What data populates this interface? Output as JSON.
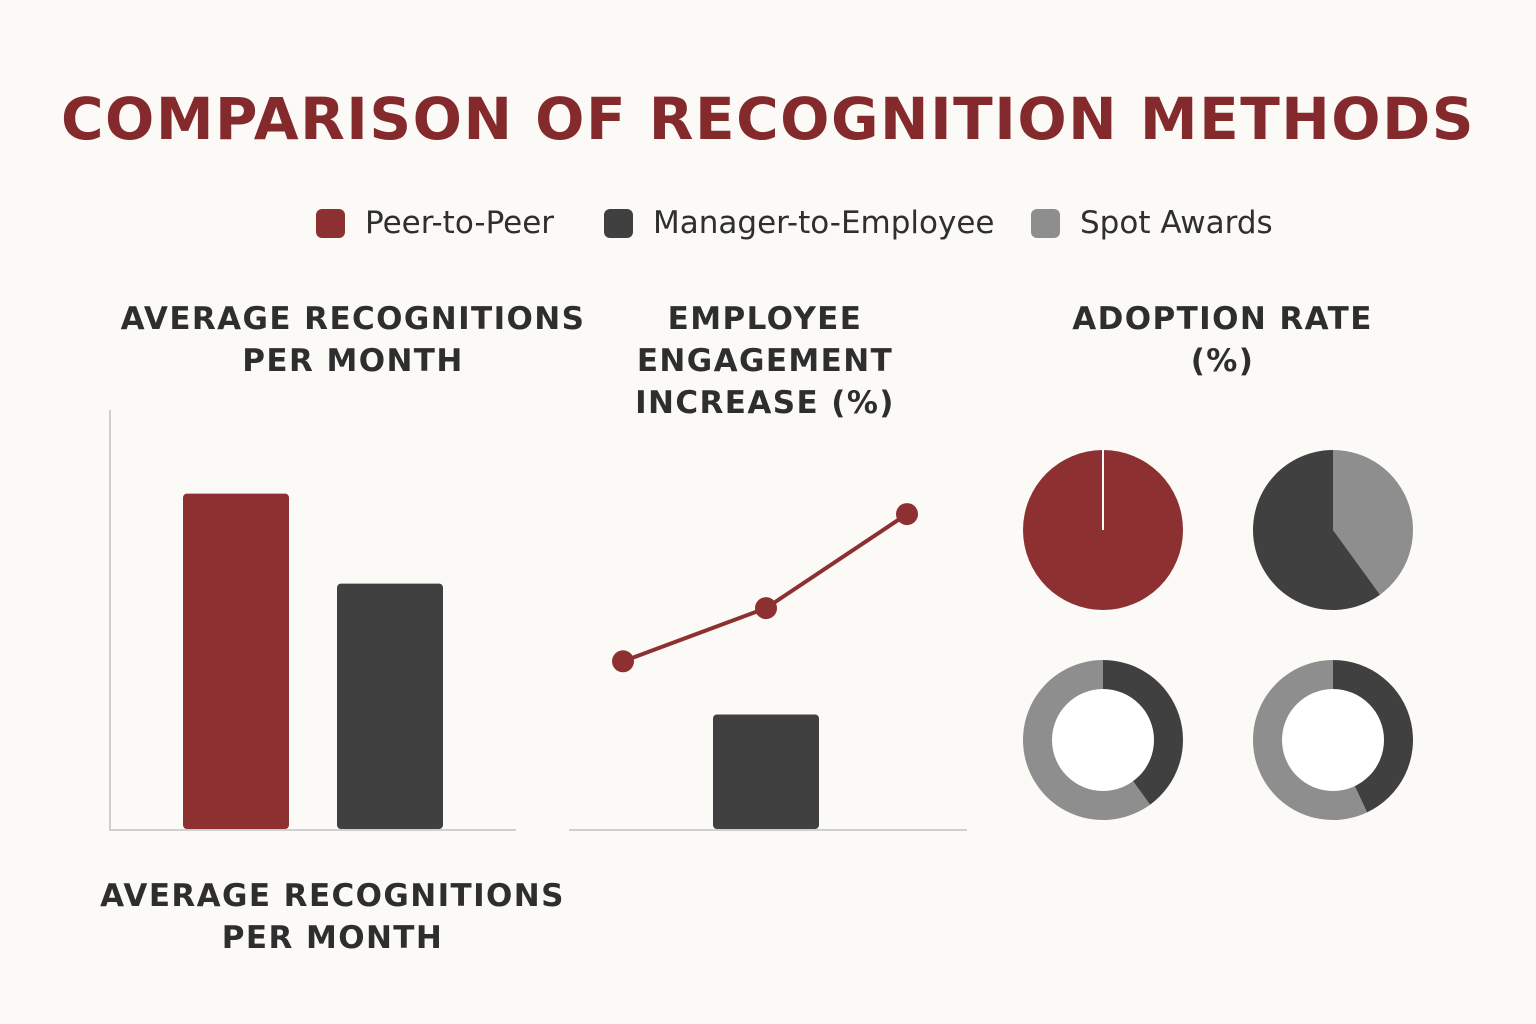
{
  "title": "COMPARISON OF RECOGNITION METHODS",
  "legend": [
    {
      "label": "Peer-to-Peer",
      "color": "#8c3032"
    },
    {
      "label": "Manager-to-Employee",
      "color": "#404040"
    },
    {
      "label": "Spot Awards",
      "color": "#8e8e8e"
    }
  ],
  "panels": {
    "recognitions_title": [
      "AVERAGE RECOGNITIONS",
      "PER MONTH"
    ],
    "recognitions_caption": [
      "AVERAGE RECOGNITIONS",
      "PER MONTH"
    ],
    "engagement_title": [
      "EMPLOYEE",
      "ENGAGEMENT",
      "INCREASE (%)"
    ],
    "adoption_title": [
      "ADOPTION RATE",
      "(%)"
    ]
  },
  "chart_data": [
    {
      "type": "bar",
      "title": "AVERAGE RECOGNITIONS PER MONTH",
      "categories": [
        "Peer-to-Peer",
        "Manager-to-Employee"
      ],
      "values": [
        82,
        60
      ],
      "ylim": [
        0,
        100
      ],
      "colors": [
        "#8c3032",
        "#404040"
      ]
    },
    {
      "type": "line",
      "title": "EMPLOYEE ENGAGEMENT INCREASE (%)",
      "series": [
        {
          "name": "Peer-to-Peer",
          "type": "line",
          "values": [
            41,
            54,
            77
          ],
          "color": "#8c3032"
        },
        {
          "name": "Manager-to-Employee",
          "type": "bar",
          "values": [
            null,
            28,
            null
          ],
          "color": "#404040"
        }
      ],
      "ylim": [
        0,
        100
      ]
    },
    {
      "type": "pie",
      "title": "ADOPTION RATE (%)",
      "charts": [
        {
          "style": "pie",
          "slices": [
            {
              "label": "Peer-to-Peer",
              "value": 100,
              "color": "#8c3032"
            }
          ]
        },
        {
          "style": "pie",
          "slices": [
            {
              "label": "Spot Awards",
              "value": 40,
              "color": "#8e8e8e"
            },
            {
              "label": "Manager-to-Employee",
              "value": 60,
              "color": "#404040"
            }
          ]
        },
        {
          "style": "donut",
          "slices": [
            {
              "label": "Manager-to-Employee",
              "value": 40,
              "color": "#404040"
            },
            {
              "label": "Spot Awards",
              "value": 60,
              "color": "#8e8e8e"
            }
          ]
        },
        {
          "style": "donut",
          "slices": [
            {
              "label": "Manager-to-Employee",
              "value": 43,
              "color": "#404040"
            },
            {
              "label": "Spot Awards",
              "value": 57,
              "color": "#8e8e8e"
            }
          ]
        }
      ]
    }
  ]
}
